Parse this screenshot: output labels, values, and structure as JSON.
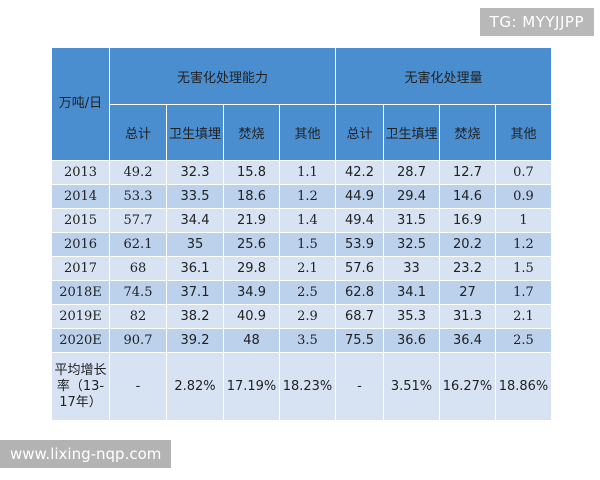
{
  "watermarks": {
    "top": "TG: MYYJJPP",
    "bottom": "www.lixing-nqp.com"
  },
  "table": {
    "corner": "万吨/日",
    "group_capacity": "无害化处理能力",
    "group_volume": "无害化处理量",
    "subheaders": [
      "总计",
      "卫生填埋",
      "焚烧",
      "其他",
      "总计",
      "卫生填埋",
      "焚烧",
      "其他"
    ],
    "rows": [
      {
        "label": "2013",
        "values": [
          "49.2",
          "32.3",
          "15.8",
          "1.1",
          "42.2",
          "28.7",
          "12.7",
          "0.7"
        ]
      },
      {
        "label": "2014",
        "values": [
          "53.3",
          "33.5",
          "18.6",
          "1.2",
          "44.9",
          "29.4",
          "14.6",
          "0.9"
        ]
      },
      {
        "label": "2015",
        "values": [
          "57.7",
          "34.4",
          "21.9",
          "1.4",
          "49.4",
          "31.5",
          "16.9",
          "1"
        ]
      },
      {
        "label": "2016",
        "values": [
          "62.1",
          "35",
          "25.6",
          "1.5",
          "53.9",
          "32.5",
          "20.2",
          "1.2"
        ]
      },
      {
        "label": "2017",
        "values": [
          "68",
          "36.1",
          "29.8",
          "2.1",
          "57.6",
          "33",
          "23.2",
          "1.5"
        ]
      },
      {
        "label": "2018E",
        "values": [
          "74.5",
          "37.1",
          "34.9",
          "2.5",
          "62.8",
          "34.1",
          "27",
          "1.7"
        ]
      },
      {
        "label": "2019E",
        "values": [
          "82",
          "38.2",
          "40.9",
          "2.9",
          "68.7",
          "35.3",
          "31.3",
          "2.1"
        ]
      },
      {
        "label": "2020E",
        "values": [
          "90.7",
          "39.2",
          "48",
          "3.5",
          "75.5",
          "36.6",
          "36.4",
          "2.5"
        ]
      }
    ],
    "avg_row": {
      "label": "平均增长率（13-17年）",
      "values": [
        "-",
        "2.82%",
        "17.19%",
        "18.23%",
        "-",
        "3.51%",
        "16.27%",
        "18.86%"
      ]
    }
  }
}
